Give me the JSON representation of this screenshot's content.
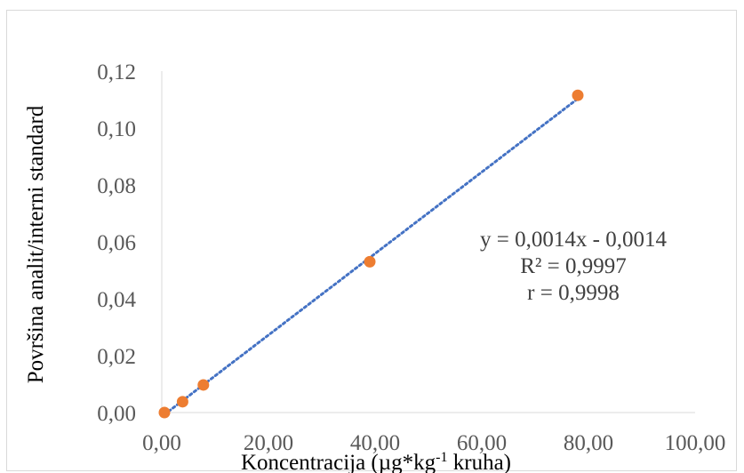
{
  "chart_data": {
    "type": "scatter",
    "xlabel": {
      "main": "Koncentracija (µg*kg",
      "superscript": "-1",
      "tail": " kruha)"
    },
    "ylabel": "Površina analit/interni standard",
    "xlim": [
      0,
      100
    ],
    "ylim": [
      0,
      0.12
    ],
    "x_ticks": [
      "0,00",
      "20,00",
      "40,00",
      "60,00",
      "80,00",
      "100,00"
    ],
    "y_ticks": [
      "0,00",
      "0,02",
      "0,04",
      "0,06",
      "0,08",
      "0,10",
      "0,12"
    ],
    "grid": false,
    "legend": "none",
    "series": [
      {
        "marker_color": "#ed7d31",
        "points": [
          {
            "x": 0.5,
            "y": 0.0
          },
          {
            "x": 3.9,
            "y": 0.0038
          },
          {
            "x": 7.8,
            "y": 0.0097
          },
          {
            "x": 39.0,
            "y": 0.053
          },
          {
            "x": 78.0,
            "y": 0.1115
          }
        ]
      }
    ],
    "trendline": {
      "type": "linear",
      "slope": 0.0014,
      "intercept": -0.0014,
      "x_range": [
        0.5,
        78.0
      ],
      "color": "#4472c4",
      "style": "dotted"
    },
    "annotations": [
      "y = 0,0014x - 0,0014",
      "R² = 0,9997",
      "r = 0,9998"
    ],
    "axis_color": "#d9d9d9"
  }
}
